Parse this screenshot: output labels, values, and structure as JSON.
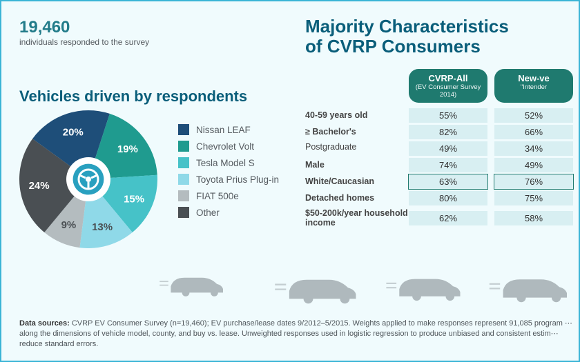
{
  "background_color": "#f0fbfd",
  "border_color": "#3ab4d6",
  "stat": {
    "number": "19,460",
    "subtitle": "individuals responded to the survey",
    "number_color": "#227c8a",
    "number_fontsize": 24,
    "sub_fontsize": 12
  },
  "title_right": {
    "line1": "Majority Characteristics",
    "line2": "of CVRP Consumers",
    "color": "#0a5e7a",
    "fontsize": 26
  },
  "pie": {
    "title": "Vehicles driven by respondents",
    "title_color": "#0a5e7a",
    "title_fontsize": 22,
    "center_circle_color": "#ffffff",
    "center_icon_ring_color": "#29a0bf",
    "slices": [
      {
        "label": "Nissan LEAF",
        "value": 20,
        "color": "#1e4e79",
        "pct_label": "20%"
      },
      {
        "label": "Chevrolet Volt",
        "value": 19,
        "color": "#1f9b8f",
        "pct_label": "19%"
      },
      {
        "label": "Tesla Model S",
        "value": 15,
        "color": "#46c2c8",
        "pct_label": "15%"
      },
      {
        "label": "Toyota Prius Plug-in",
        "value": 13,
        "color": "#8fd9e8",
        "pct_label": "13%"
      },
      {
        "label": "FIAT 500e",
        "value": 9,
        "color": "#b4bcbf",
        "pct_label": "9%"
      },
      {
        "label": "Other",
        "value": 24,
        "color": "#4a4f53",
        "pct_label": "24%"
      }
    ],
    "start_angle_deg": -54,
    "inner_radius_ratio": 0.32
  },
  "table": {
    "header_bg": "#1f7a6f",
    "header_fg": "#ffffff",
    "cell_bg": "#d8eff2",
    "highlight_border": "#1f7a6f",
    "columns": [
      {
        "main": "CVRP-All",
        "sub": "(EV Consumer Survey 2014)"
      },
      {
        "main": "New-ve",
        "sub": "\"Intender"
      }
    ],
    "rows": [
      {
        "label": "40-59 years old",
        "c1": "55%",
        "c2": "52%"
      },
      {
        "label": "≥ Bachelor's",
        "c1": "82%",
        "c2": "66%"
      },
      {
        "label": "Postgraduate",
        "sub": true,
        "c1": "49%",
        "c2": "34%"
      },
      {
        "label": "Male",
        "c1": "74%",
        "c2": "49%"
      },
      {
        "label": "White/Caucasian",
        "hl": true,
        "c1": "63%",
        "c2": "76%"
      },
      {
        "label": "Detached homes",
        "c1": "80%",
        "c2": "75%"
      },
      {
        "label": "$50-200k/year household income",
        "c1": "62%",
        "c2": "58%"
      }
    ]
  },
  "cars": {
    "fill": "#9aa3a7",
    "opacity": 0.75,
    "count": 4
  },
  "footnote": {
    "bold": "Data sources:",
    "text": " CVRP EV Consumer Survey (n=19,460); EV purchase/lease dates 9/2012–5/2015. Weights applied to make responses represent 91,085 program ⋯ along the dimensions of vehicle model, county, and buy vs. lease. Unweighted responses used in logistic regression to produce unbiased and consistent estim⋯ reduce standard errors.",
    "fontsize": 11
  }
}
